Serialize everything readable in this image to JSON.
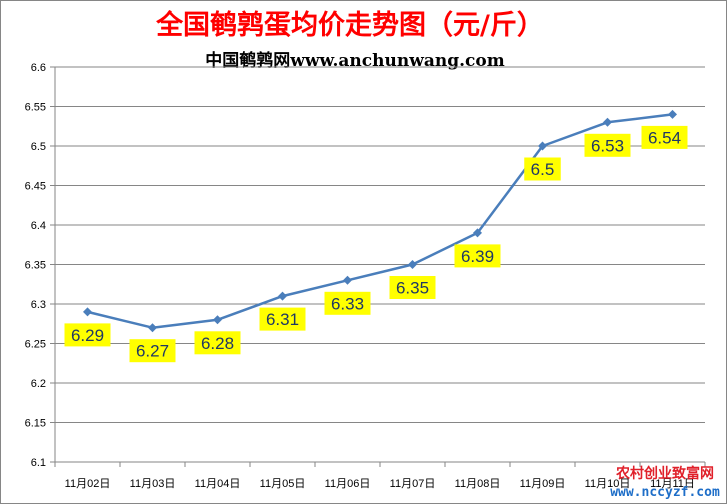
{
  "chart_data": {
    "type": "line",
    "title": "全国鹌鹑蛋均价走势图（元/斤）",
    "subtitle": "中国鹌鹑网www.anchunwang.com",
    "categories": [
      "11月02日",
      "11月03日",
      "11月04日",
      "11月05日",
      "11月06日",
      "11月07日",
      "11月08日",
      "11月09日",
      "11月10日",
      "11月11日"
    ],
    "values": [
      6.29,
      6.27,
      6.28,
      6.31,
      6.33,
      6.35,
      6.39,
      6.5,
      6.53,
      6.54
    ],
    "data_labels": [
      "6.29",
      "6.27",
      "6.28",
      "6.31",
      "6.33",
      "6.35",
      "6.39",
      "6.5",
      "6.53",
      "6.54"
    ],
    "ylim": [
      6.1,
      6.6
    ],
    "yticks": [
      "6.1",
      "6.15",
      "6.2",
      "6.25",
      "6.3",
      "6.35",
      "6.4",
      "6.45",
      "6.5",
      "6.55",
      "6.6"
    ],
    "xlabel": "",
    "ylabel": "",
    "grid": true,
    "legend": "none",
    "line_color": "#4a7ebb",
    "label_bg_color": "#ffff00"
  },
  "watermark": {
    "line1": "农村创业致富网",
    "line2": "www.nccyzf.com"
  }
}
